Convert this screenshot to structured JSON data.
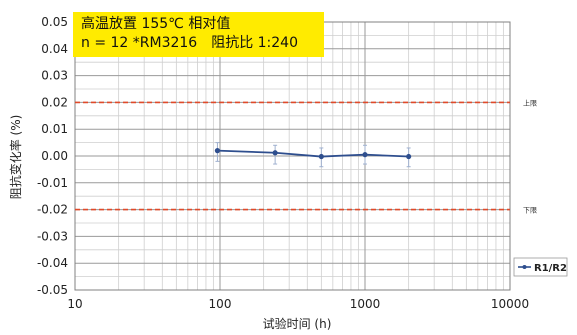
{
  "chart_data": {
    "type": "line",
    "title_line1": "高温放置 155℃ 相对值",
    "title_line2": "n = 12 *RM3216　阻抗比 1:240",
    "xlabel": "试验时间 (h)",
    "ylabel": "阻抗变化率 (%)",
    "x_scale": "log",
    "xlim": [
      10,
      10000
    ],
    "ylim": [
      -0.05,
      0.05
    ],
    "x_ticks": [
      10,
      100,
      1000,
      10000
    ],
    "x_tick_labels": [
      "10",
      "100",
      "1000",
      "10000"
    ],
    "y_ticks": [
      -0.05,
      -0.04,
      -0.03,
      -0.02,
      -0.01,
      0.0,
      0.01,
      0.02,
      0.03,
      0.04,
      0.05
    ],
    "y_tick_labels": [
      "-0.05",
      "-0.04",
      "-0.03",
      "-0.02",
      "-0.01",
      "0.00",
      "0.01",
      "0.02",
      "0.03",
      "0.04",
      "0.05"
    ],
    "grid": true,
    "legend_position": "right",
    "series": [
      {
        "name": "R1/R2",
        "color": "#2e4e8e",
        "x": [
          96,
          240,
          500,
          1000,
          2000
        ],
        "y": [
          0.002,
          0.0012,
          -0.0002,
          0.0005,
          -0.0002
        ],
        "err_low": [
          -0.002,
          -0.003,
          -0.004,
          -0.003,
          -0.004
        ],
        "err_high": [
          0.005,
          0.004,
          0.003,
          0.004,
          0.003
        ]
      }
    ],
    "limits": [
      {
        "label": "上限",
        "y": 0.02,
        "color": "#e04a2a"
      },
      {
        "label": "下限",
        "y": -0.02,
        "color": "#e04a2a"
      }
    ],
    "colors": {
      "grid_major": "#9a9a9a",
      "grid_minor": "#cfcfcf",
      "title_box": "#ffeb00"
    }
  }
}
